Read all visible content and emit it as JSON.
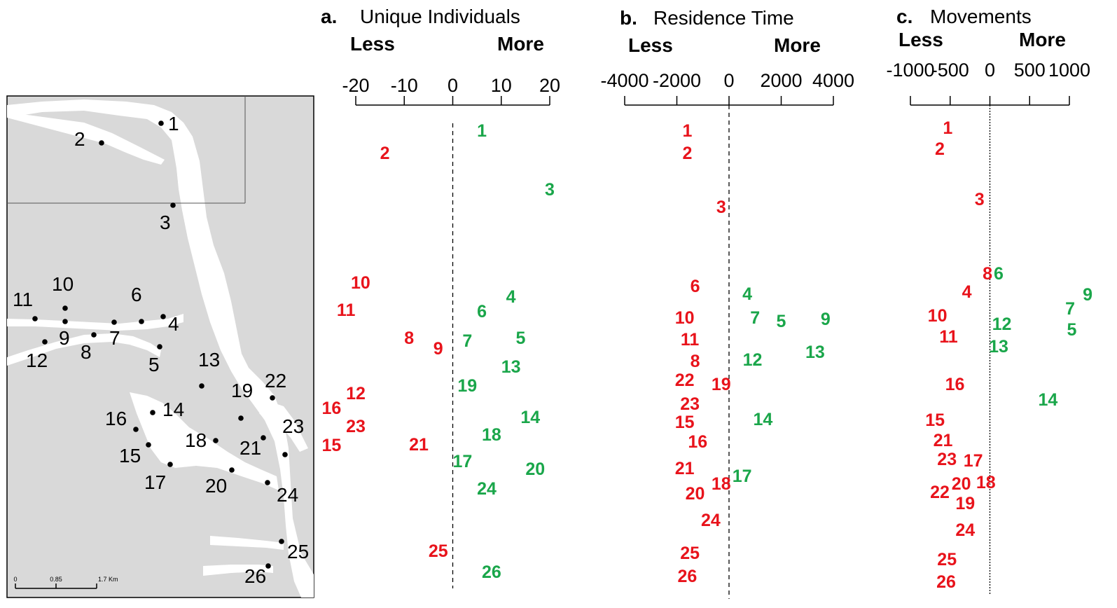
{
  "colors": {
    "less": "#e8131b",
    "more": "#1aa64a",
    "land": "#d9d9d9",
    "water": "#ffffff",
    "ink": "#000000"
  },
  "map": {
    "scale_labels": [
      "0",
      "0.85",
      "1.7 Km"
    ],
    "sites": [
      "1",
      "2",
      "3",
      "4",
      "5",
      "6",
      "7",
      "8",
      "9",
      "10",
      "11",
      "12",
      "13",
      "14",
      "15",
      "16",
      "17",
      "18",
      "19",
      "20",
      "21",
      "22",
      "23",
      "24",
      "25",
      "26"
    ]
  },
  "chart_data": [
    {
      "type": "scatter",
      "panel_letter": "a.",
      "title": "Unique Individuals",
      "less_label": "Less",
      "more_label": "More",
      "ticks": [
        -20,
        -10,
        0,
        10,
        20
      ],
      "xlim": [
        -20,
        20
      ],
      "points": [
        {
          "label": "1",
          "value": 6
        },
        {
          "label": "2",
          "value": -14
        },
        {
          "label": "3",
          "value": 20
        },
        {
          "label": "4",
          "value": 12
        },
        {
          "label": "5",
          "value": 14
        },
        {
          "label": "6",
          "value": 6
        },
        {
          "label": "7",
          "value": 3
        },
        {
          "label": "8",
          "value": -9
        },
        {
          "label": "9",
          "value": -3
        },
        {
          "label": "10",
          "value": -19
        },
        {
          "label": "11",
          "value": -22
        },
        {
          "label": "12",
          "value": -20
        },
        {
          "label": "13",
          "value": 12
        },
        {
          "label": "14",
          "value": 16
        },
        {
          "label": "15",
          "value": -25
        },
        {
          "label": "16",
          "value": -25
        },
        {
          "label": "17",
          "value": 2
        },
        {
          "label": "18",
          "value": 8
        },
        {
          "label": "19",
          "value": 3
        },
        {
          "label": "20",
          "value": 17
        },
        {
          "label": "21",
          "value": -7
        },
        {
          "label": "23",
          "value": -20
        },
        {
          "label": "24",
          "value": 7
        },
        {
          "label": "25",
          "value": -3
        },
        {
          "label": "26",
          "value": 8
        }
      ]
    },
    {
      "type": "scatter",
      "panel_letter": "b.",
      "title": "Residence Time",
      "less_label": "Less",
      "more_label": "More",
      "ticks": [
        -4000,
        -2000,
        0,
        2000,
        4000
      ],
      "xlim": [
        -4000,
        4000
      ],
      "points": [
        {
          "label": "1",
          "value": -1600
        },
        {
          "label": "2",
          "value": -1600
        },
        {
          "label": "3",
          "value": -300
        },
        {
          "label": "4",
          "value": 700
        },
        {
          "label": "5",
          "value": 2000
        },
        {
          "label": "6",
          "value": -1300
        },
        {
          "label": "7",
          "value": 1000
        },
        {
          "label": "8",
          "value": -1300
        },
        {
          "label": "9",
          "value": 3700
        },
        {
          "label": "10",
          "value": -1700
        },
        {
          "label": "11",
          "value": -1500
        },
        {
          "label": "12",
          "value": 900
        },
        {
          "label": "13",
          "value": 3300
        },
        {
          "label": "14",
          "value": 1300
        },
        {
          "label": "15",
          "value": -1700
        },
        {
          "label": "16",
          "value": -1200
        },
        {
          "label": "17",
          "value": 500
        },
        {
          "label": "18",
          "value": -300
        },
        {
          "label": "19",
          "value": -300
        },
        {
          "label": "20",
          "value": -1300
        },
        {
          "label": "21",
          "value": -1700
        },
        {
          "label": "22",
          "value": -1700
        },
        {
          "label": "23",
          "value": -1500
        },
        {
          "label": "24",
          "value": -700
        },
        {
          "label": "25",
          "value": -1500
        },
        {
          "label": "26",
          "value": -1600
        }
      ]
    },
    {
      "type": "scatter",
      "panel_letter": "c.",
      "title": "Movements",
      "less_label": "Less",
      "more_label": "More",
      "ticks": [
        -1000,
        -500,
        0,
        500,
        1000
      ],
      "xlim": [
        -1000,
        1000
      ],
      "points": [
        {
          "label": "1",
          "value": -530
        },
        {
          "label": "2",
          "value": -630
        },
        {
          "label": "3",
          "value": -130
        },
        {
          "label": "4",
          "value": -290
        },
        {
          "label": "5",
          "value": 1030
        },
        {
          "label": "6",
          "value": 110
        },
        {
          "label": "7",
          "value": 1010
        },
        {
          "label": "8",
          "value": -30
        },
        {
          "label": "9",
          "value": 1230
        },
        {
          "label": "10",
          "value": -660
        },
        {
          "label": "11",
          "value": -520
        },
        {
          "label": "12",
          "value": 150
        },
        {
          "label": "13",
          "value": 110
        },
        {
          "label": "14",
          "value": 730
        },
        {
          "label": "15",
          "value": -690
        },
        {
          "label": "16",
          "value": -440
        },
        {
          "label": "17",
          "value": -210
        },
        {
          "label": "18",
          "value": -50
        },
        {
          "label": "19",
          "value": -310
        },
        {
          "label": "20",
          "value": -360
        },
        {
          "label": "21",
          "value": -590
        },
        {
          "label": "22",
          "value": -630
        },
        {
          "label": "23",
          "value": -540
        },
        {
          "label": "24",
          "value": -310
        },
        {
          "label": "25",
          "value": -540
        },
        {
          "label": "26",
          "value": -550
        }
      ]
    }
  ]
}
